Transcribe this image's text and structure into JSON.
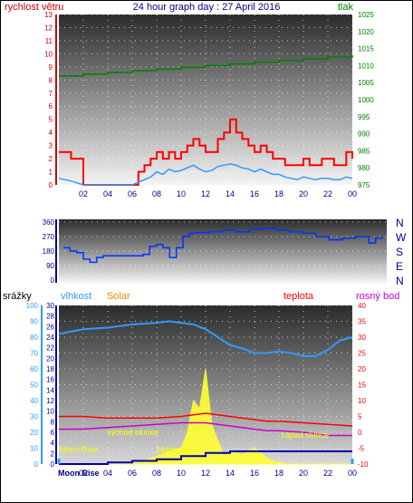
{
  "colors": {
    "wind": "#ff0000",
    "gust": "#ff0000",
    "avgwind": "#3399ff",
    "pressure": "#008000",
    "direction": "#0033ff",
    "humidity": "#3399ff",
    "temperature": "#ff0000",
    "dewpoint": "#cc00cc",
    "solar": "#ffff33",
    "rain": "#0000aa",
    "moon": "#3399ff"
  },
  "chart_data": [
    {
      "type": "line",
      "title": "24 hour graph day : 27 April 2016",
      "ylabel_left": "rychlost větru",
      "ylabel_right": "tlak",
      "ylim_left": [
        0,
        13
      ],
      "ylim_right": [
        975,
        1025
      ],
      "yticks_left": [
        "0",
        "1",
        "2",
        "3",
        "4",
        "5",
        "6",
        "7",
        "8",
        "9",
        "10",
        "11",
        "12",
        "13"
      ],
      "yticks_right": [
        "975",
        "980",
        "985",
        "990",
        "995",
        "1000",
        "1005",
        "1010",
        "1015",
        "1020",
        "1025"
      ],
      "xticks": [
        "02",
        "04",
        "06",
        "08",
        "10",
        "12",
        "14",
        "16",
        "18",
        "20",
        "22",
        "00"
      ],
      "series": [
        {
          "key": "gust",
          "x": [
            0.0,
            1.0,
            2.0,
            3.0,
            4.0,
            5.0,
            6.0,
            6.5,
            7.0,
            7.5,
            8.0,
            8.5,
            9.0,
            9.5,
            10.0,
            10.5,
            11.0,
            11.5,
            12.0,
            12.5,
            13.0,
            13.5,
            14.0,
            14.5,
            15.0,
            15.5,
            16.0,
            16.5,
            17.0,
            17.5,
            18.0,
            18.5,
            19.0,
            19.5,
            20.0,
            20.5,
            21.0,
            21.5,
            22.0,
            22.5,
            23.0,
            23.5,
            24.0
          ],
          "values": [
            2.5,
            2.0,
            0.0,
            0.0,
            0.0,
            0.0,
            0.0,
            1.0,
            1.5,
            2.0,
            2.5,
            2.0,
            2.5,
            2.0,
            2.5,
            3.0,
            3.5,
            3.0,
            2.5,
            2.5,
            3.5,
            4.0,
            5.0,
            4.0,
            3.5,
            3.0,
            2.5,
            3.0,
            2.5,
            2.0,
            2.0,
            1.5,
            1.5,
            1.5,
            2.0,
            1.5,
            1.5,
            2.0,
            2.0,
            1.5,
            1.5,
            2.5,
            2.0
          ]
        },
        {
          "key": "avgwind",
          "x": [
            0.0,
            1.0,
            2.0,
            3.0,
            4.0,
            5.0,
            6.0,
            6.5,
            7.0,
            7.5,
            8.0,
            8.5,
            9.0,
            9.5,
            10.0,
            10.5,
            11.0,
            11.5,
            12.0,
            12.5,
            13.0,
            13.5,
            14.0,
            14.5,
            15.0,
            15.5,
            16.0,
            16.5,
            17.0,
            17.5,
            18.0,
            18.5,
            19.0,
            19.5,
            20.0,
            20.5,
            21.0,
            21.5,
            22.0,
            22.5,
            23.0,
            23.5,
            24.0
          ],
          "values": [
            0.5,
            0.3,
            0.0,
            0.0,
            0.0,
            0.0,
            0.0,
            0.2,
            0.4,
            0.6,
            1.0,
            0.8,
            1.2,
            1.0,
            1.1,
            1.3,
            1.5,
            1.2,
            1.0,
            1.1,
            1.4,
            1.5,
            1.6,
            1.5,
            1.3,
            1.2,
            1.0,
            1.2,
            1.0,
            0.8,
            0.8,
            0.6,
            0.5,
            0.4,
            0.6,
            0.5,
            0.4,
            0.5,
            0.5,
            0.4,
            0.4,
            0.6,
            0.5
          ]
        },
        {
          "key": "pressure",
          "x": [
            0,
            2,
            4,
            6,
            8,
            10,
            12,
            14,
            16,
            18,
            20,
            22,
            24
          ],
          "values": [
            1007,
            1007.5,
            1008,
            1008.5,
            1009,
            1009.5,
            1010,
            1010.5,
            1011,
            1011.5,
            1012,
            1012.5,
            1013
          ]
        }
      ]
    },
    {
      "type": "line",
      "ylim": [
        0,
        360
      ],
      "yticks_left": [
        "0",
        "90",
        "180",
        "270",
        "360"
      ],
      "yticks_right": [
        "N",
        "E",
        "S",
        "W",
        "N"
      ],
      "series": [
        {
          "key": "direction",
          "x": [
            0,
            0.5,
            1,
            1.5,
            2,
            2.5,
            3,
            4,
            5,
            6,
            6.5,
            7,
            7.5,
            8,
            8.5,
            9,
            9.5,
            10,
            11,
            12,
            13,
            14,
            15,
            16,
            17,
            18,
            19,
            20,
            21,
            22,
            23,
            23.5,
            24
          ],
          "values": [
            200,
            180,
            170,
            130,
            110,
            140,
            150,
            150,
            150,
            160,
            210,
            220,
            200,
            140,
            200,
            270,
            290,
            295,
            300,
            310,
            300,
            315,
            320,
            310,
            300,
            290,
            270,
            250,
            260,
            270,
            230,
            260,
            270
          ]
        }
      ]
    },
    {
      "type": "line",
      "ylabel_left_1": "srážky",
      "ylabel_left_2": "vlhkost",
      "ylabel_left_3": "Solar",
      "ylabel_right_1": "teplota",
      "ylabel_right_2": "rosný bod",
      "yticks_rain": [
        "0",
        "10",
        "20",
        "30",
        "40",
        "50",
        "60",
        "70",
        "80",
        "90",
        "100"
      ],
      "yticks_hum": [
        "0",
        "2",
        "4",
        "6",
        "8",
        "10",
        "12",
        "14",
        "16",
        "18",
        "20",
        "22",
        "24",
        "26",
        "28",
        "30"
      ],
      "yticks_temp": [
        "-10",
        "-5",
        "0",
        "5",
        "10",
        "15",
        "20",
        "25",
        "30",
        "35",
        "40"
      ],
      "ylim_hum": [
        0,
        100
      ],
      "ylim_temp": [
        -10,
        40
      ],
      "xticks": [
        "02",
        "04",
        "06",
        "08",
        "10",
        "12",
        "14",
        "16",
        "18",
        "20",
        "22",
        "00"
      ],
      "annotations": [
        "východ slunce",
        "západ slunce",
        "Moon Rise",
        "Moon Set",
        "Moon Rise"
      ],
      "series": [
        {
          "key": "humidity",
          "x": [
            0,
            2,
            4,
            6,
            8,
            9,
            10,
            11,
            12,
            13,
            14,
            15,
            16,
            17,
            18,
            19,
            20,
            21,
            22,
            23,
            24
          ],
          "values": [
            82,
            85,
            86,
            88,
            89,
            90,
            89,
            88,
            85,
            80,
            75,
            73,
            70,
            70,
            71,
            70,
            68,
            68,
            72,
            78,
            80
          ]
        },
        {
          "key": "temperature",
          "x": [
            0,
            2,
            4,
            6,
            8,
            10,
            11,
            12,
            13,
            14,
            15,
            16,
            17,
            18,
            20,
            22,
            24
          ],
          "values": [
            5,
            5,
            4.5,
            4.5,
            4.5,
            5,
            5.5,
            6,
            5.5,
            5,
            4.5,
            4,
            3.5,
            3.5,
            3,
            2.5,
            2
          ]
        },
        {
          "key": "dewpoint",
          "x": [
            0,
            2,
            4,
            6,
            8,
            10,
            11,
            12,
            13,
            14,
            15,
            16,
            17,
            18,
            20,
            22,
            24
          ],
          "values": [
            1,
            1,
            1.5,
            2,
            2.5,
            3,
            3,
            3,
            2.5,
            2,
            1.5,
            1,
            0.5,
            0.5,
            0,
            -1,
            -1
          ]
        },
        {
          "key": "rain",
          "x": [
            0,
            4,
            6,
            8,
            10,
            12,
            14,
            16,
            18,
            20,
            22,
            24
          ],
          "values": [
            0,
            1,
            2,
            3,
            5,
            7,
            8,
            8,
            8,
            8,
            8,
            8
          ]
        },
        {
          "key": "solar",
          "x": [
            0,
            6,
            7,
            8,
            9,
            10,
            10.5,
            11,
            11.5,
            12,
            12.5,
            13,
            13.5,
            14,
            15,
            16,
            17,
            17.5,
            18,
            19,
            20,
            24
          ],
          "values": [
            0,
            0,
            2,
            5,
            8,
            10,
            20,
            40,
            35,
            60,
            25,
            15,
            5,
            8,
            6,
            10,
            4,
            2,
            1,
            0,
            0,
            0
          ]
        }
      ]
    }
  ]
}
